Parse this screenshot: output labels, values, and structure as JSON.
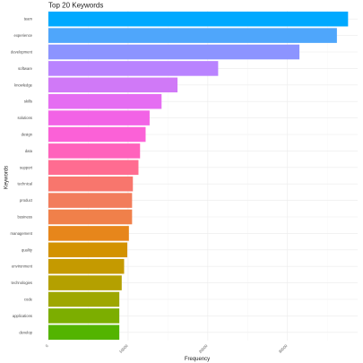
{
  "chart_data": {
    "type": "bar",
    "orientation": "horizontal",
    "title": "Top 20 Keywords",
    "xlabel": "Frequency",
    "ylabel": "Keywords",
    "xlim": [
      0,
      38800
    ],
    "x_ticks": [
      0,
      10000,
      20000,
      30000
    ],
    "x_tick_labels": [
      "0",
      "10000",
      "20000",
      "30000"
    ],
    "grid": true,
    "legend": "none",
    "categories": [
      "team",
      "experience",
      "development",
      "software",
      "knowledge",
      "skills",
      "solutions",
      "design",
      "data",
      "support",
      "technical",
      "product",
      "business",
      "management",
      "quality",
      "environment",
      "technologies",
      "code",
      "applications",
      "develop"
    ],
    "values": [
      37600,
      36200,
      31500,
      21300,
      16200,
      14200,
      12700,
      12200,
      11500,
      11300,
      10600,
      10500,
      10500,
      10100,
      9900,
      9500,
      9200,
      8900,
      8900,
      8900
    ],
    "colors": [
      "#00a9ff",
      "#4fa6fb",
      "#8c94ff",
      "#b983ff",
      "#d079f7",
      "#e56df2",
      "#f263e6",
      "#fb61d7",
      "#ff62bc",
      "#ff6c91",
      "#f8766d",
      "#f27d5c",
      "#f0804a",
      "#e7861b",
      "#d39200",
      "#c59a00",
      "#b4a000",
      "#9ea700",
      "#7cae00",
      "#53b400"
    ]
  }
}
